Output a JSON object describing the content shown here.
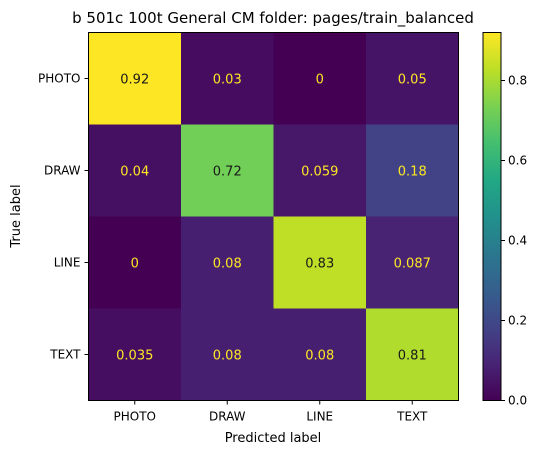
{
  "chart_data": {
    "type": "heatmap",
    "title": "b 501c 100t  General CM folder: pages/train_balanced",
    "xlabel": "Predicted label",
    "ylabel": "True label",
    "x_categories": [
      "PHOTO",
      "DRAW",
      "LINE",
      "TEXT"
    ],
    "y_categories": [
      "PHOTO",
      "DRAW",
      "LINE",
      "TEXT"
    ],
    "matrix": [
      [
        0.92,
        0.03,
        0,
        0.05
      ],
      [
        0.04,
        0.72,
        0.059,
        0.18
      ],
      [
        0,
        0.08,
        0.83,
        0.087
      ],
      [
        0.035,
        0.08,
        0.08,
        0.81
      ]
    ],
    "cell_labels": [
      [
        "0.92",
        "0.03",
        "0",
        "0.05"
      ],
      [
        "0.04",
        "0.72",
        "0.059",
        "0.18"
      ],
      [
        "0",
        "0.08",
        "0.83",
        "0.087"
      ],
      [
        "0.035",
        "0.08",
        "0.08",
        "0.81"
      ]
    ],
    "colormap": "viridis",
    "vmin": 0,
    "vmax": 0.92,
    "colorbar_ticks": [
      0.0,
      0.2,
      0.4,
      0.6,
      0.8
    ],
    "colorbar_tick_labels": [
      "0.0",
      "0.2",
      "0.4",
      "0.6",
      "0.8"
    ],
    "text_color_light": "#fde725",
    "text_color_dark": "#1a1a1a",
    "grid": false
  }
}
